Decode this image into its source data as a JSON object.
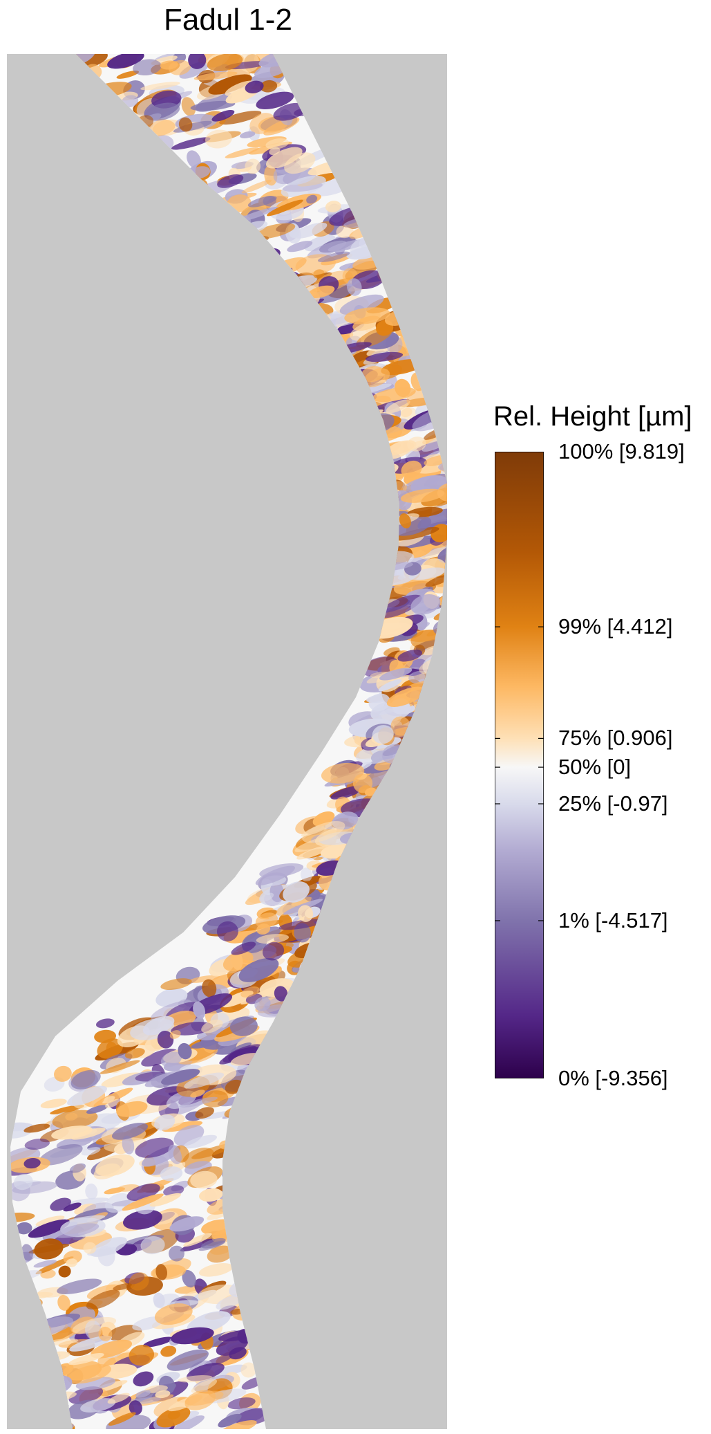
{
  "chart_data": {
    "type": "heatmap",
    "title": "Fadul 1-2",
    "legend": {
      "title": "Rel. Height [µm]",
      "placement": "right",
      "ticks": [
        {
          "percent": 100,
          "value": 9.819,
          "label": "100% [9.819]"
        },
        {
          "percent": 99,
          "value": 4.412,
          "label": "99% [4.412]"
        },
        {
          "percent": 75,
          "value": 0.906,
          "label": "75% [0.906]"
        },
        {
          "percent": 50,
          "value": 0,
          "label": "50% [0]"
        },
        {
          "percent": 25,
          "value": -0.97,
          "label": "25% [-0.97]"
        },
        {
          "percent": 1,
          "value": -4.517,
          "label": "1% [-4.517]"
        },
        {
          "percent": 0,
          "value": -9.356,
          "label": "0% [-9.356]"
        }
      ]
    },
    "value_range": [
      -9.356,
      9.819
    ],
    "colormap": [
      "#2d004b",
      "#542788",
      "#8073ac",
      "#b2abd2",
      "#d8daeb",
      "#f7f7f7",
      "#fee0b6",
      "#fdb863",
      "#e08214",
      "#b35806",
      "#7f3b08"
    ],
    "background_color": "#c8c8c8",
    "grid": false
  }
}
